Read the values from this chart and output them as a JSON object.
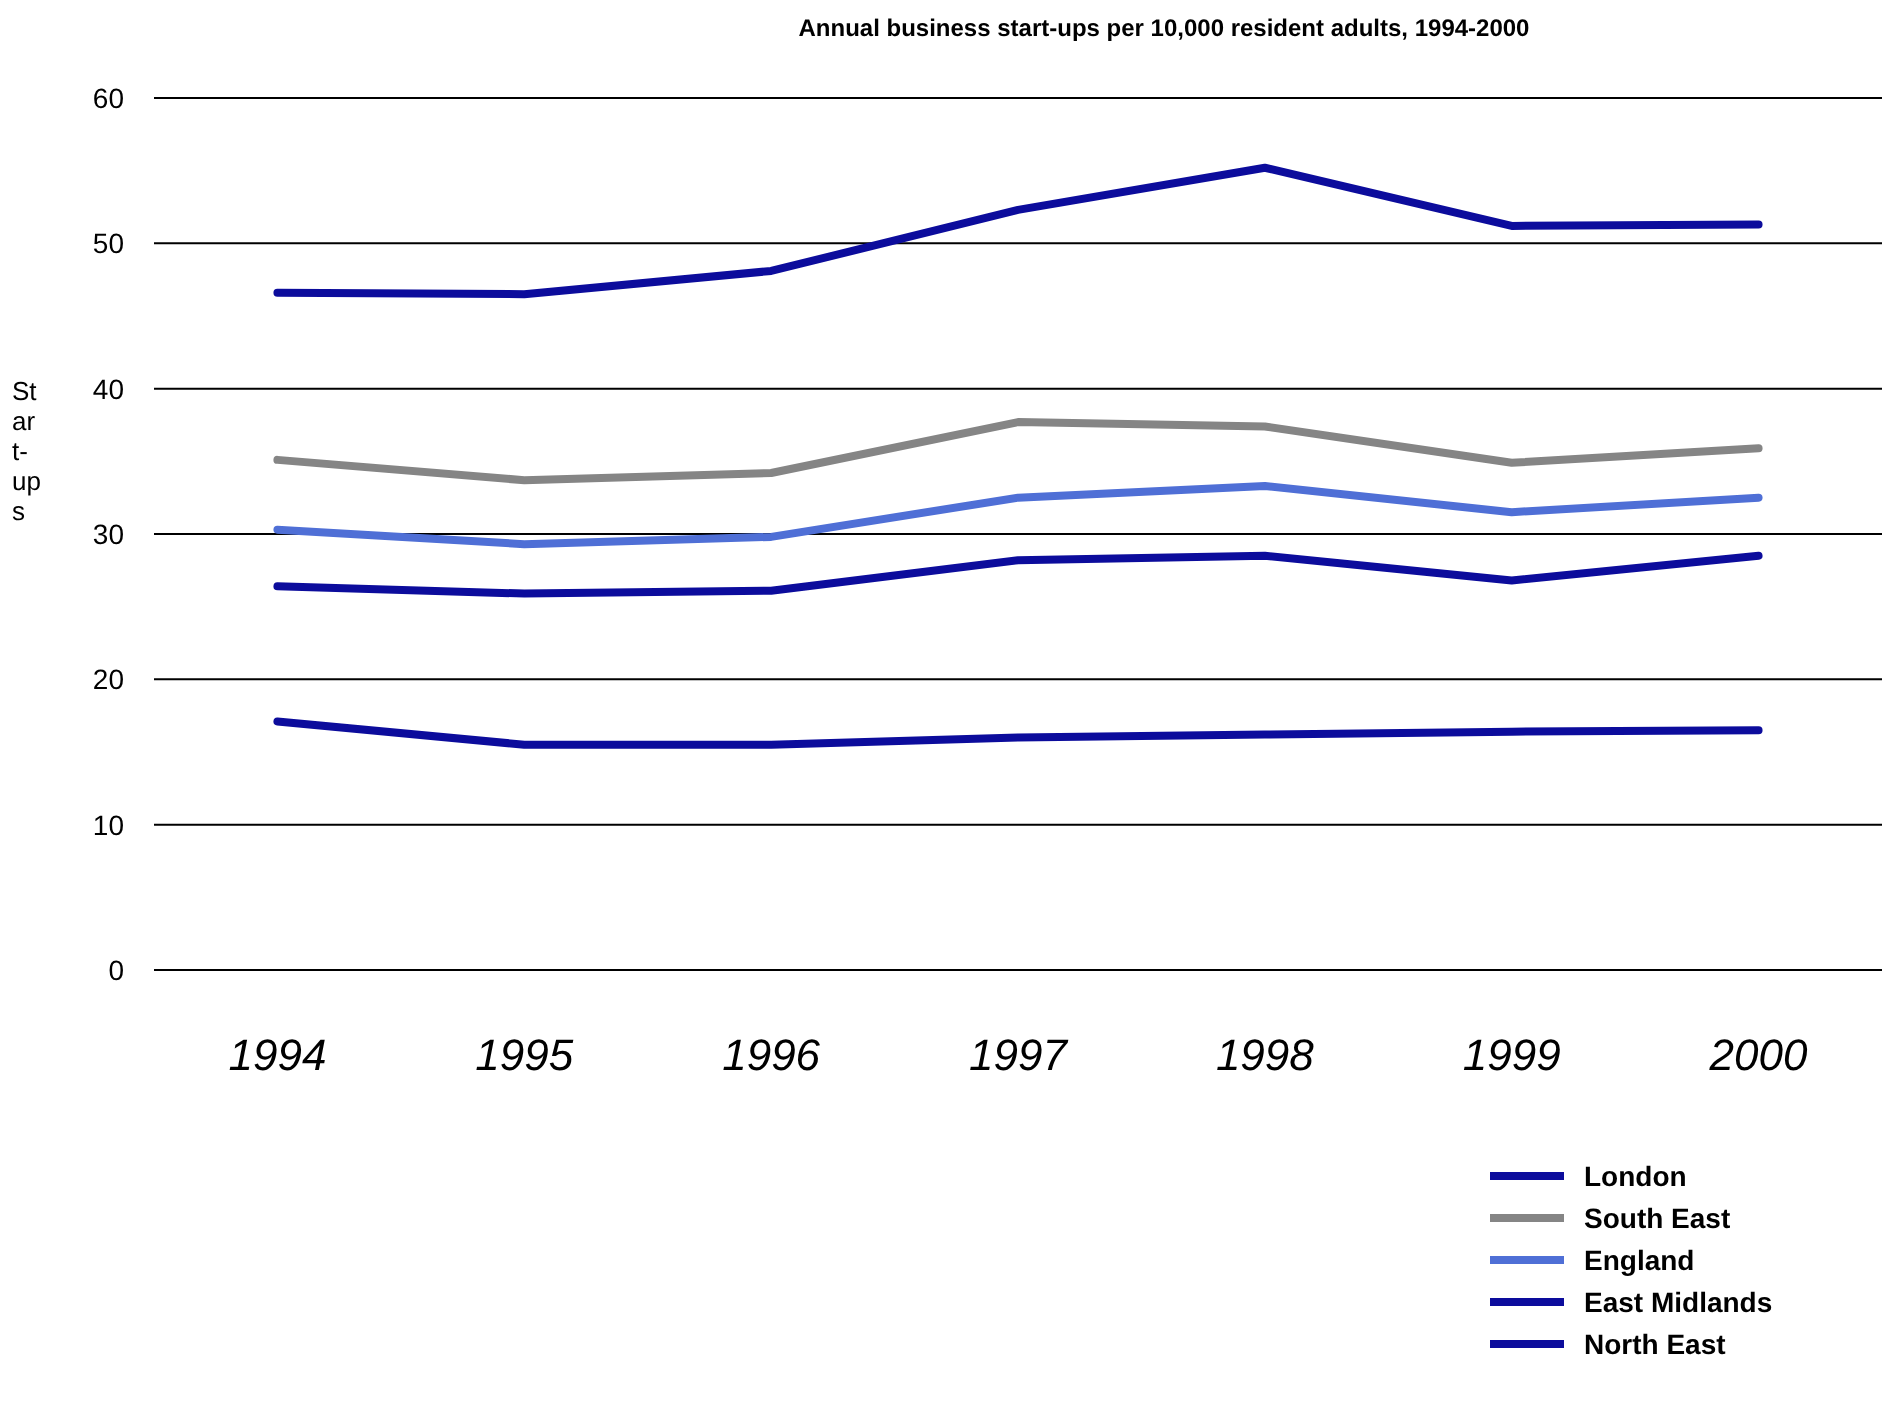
{
  "chart_data": {
    "type": "line",
    "title": "Annual business start-ups per 10,000 resident adults, 1994-2000",
    "ylabel": "Start-ups",
    "categories": [
      "1994",
      "1995",
      "1996",
      "1997",
      "1998",
      "1999",
      "2000"
    ],
    "series": [
      {
        "name": "London",
        "color": "#0c0c9c",
        "values": [
          46.6,
          46.5,
          48.1,
          52.3,
          55.2,
          51.2,
          51.3
        ]
      },
      {
        "name": "South East",
        "color": "#858585",
        "values": [
          35.1,
          33.7,
          34.2,
          37.7,
          37.4,
          34.9,
          35.9
        ]
      },
      {
        "name": "England",
        "color": "#4f6fd6",
        "values": [
          30.3,
          29.3,
          29.8,
          32.5,
          33.3,
          31.5,
          32.5
        ]
      },
      {
        "name": "East Midlands",
        "color": "#0c0c9c",
        "values": [
          26.4,
          25.9,
          26.1,
          28.2,
          28.5,
          26.8,
          28.5
        ]
      },
      {
        "name": "North East",
        "color": "#0c0c9c",
        "values": [
          17.1,
          15.5,
          15.5,
          16.0,
          16.2,
          16.4,
          16.5
        ]
      }
    ],
    "ylim": [
      0,
      60
    ],
    "yticks": [
      0,
      10,
      20,
      30,
      40,
      50,
      60
    ],
    "grid": "y",
    "legend": "bottom right",
    "line_style": "solid",
    "marker": "none"
  }
}
